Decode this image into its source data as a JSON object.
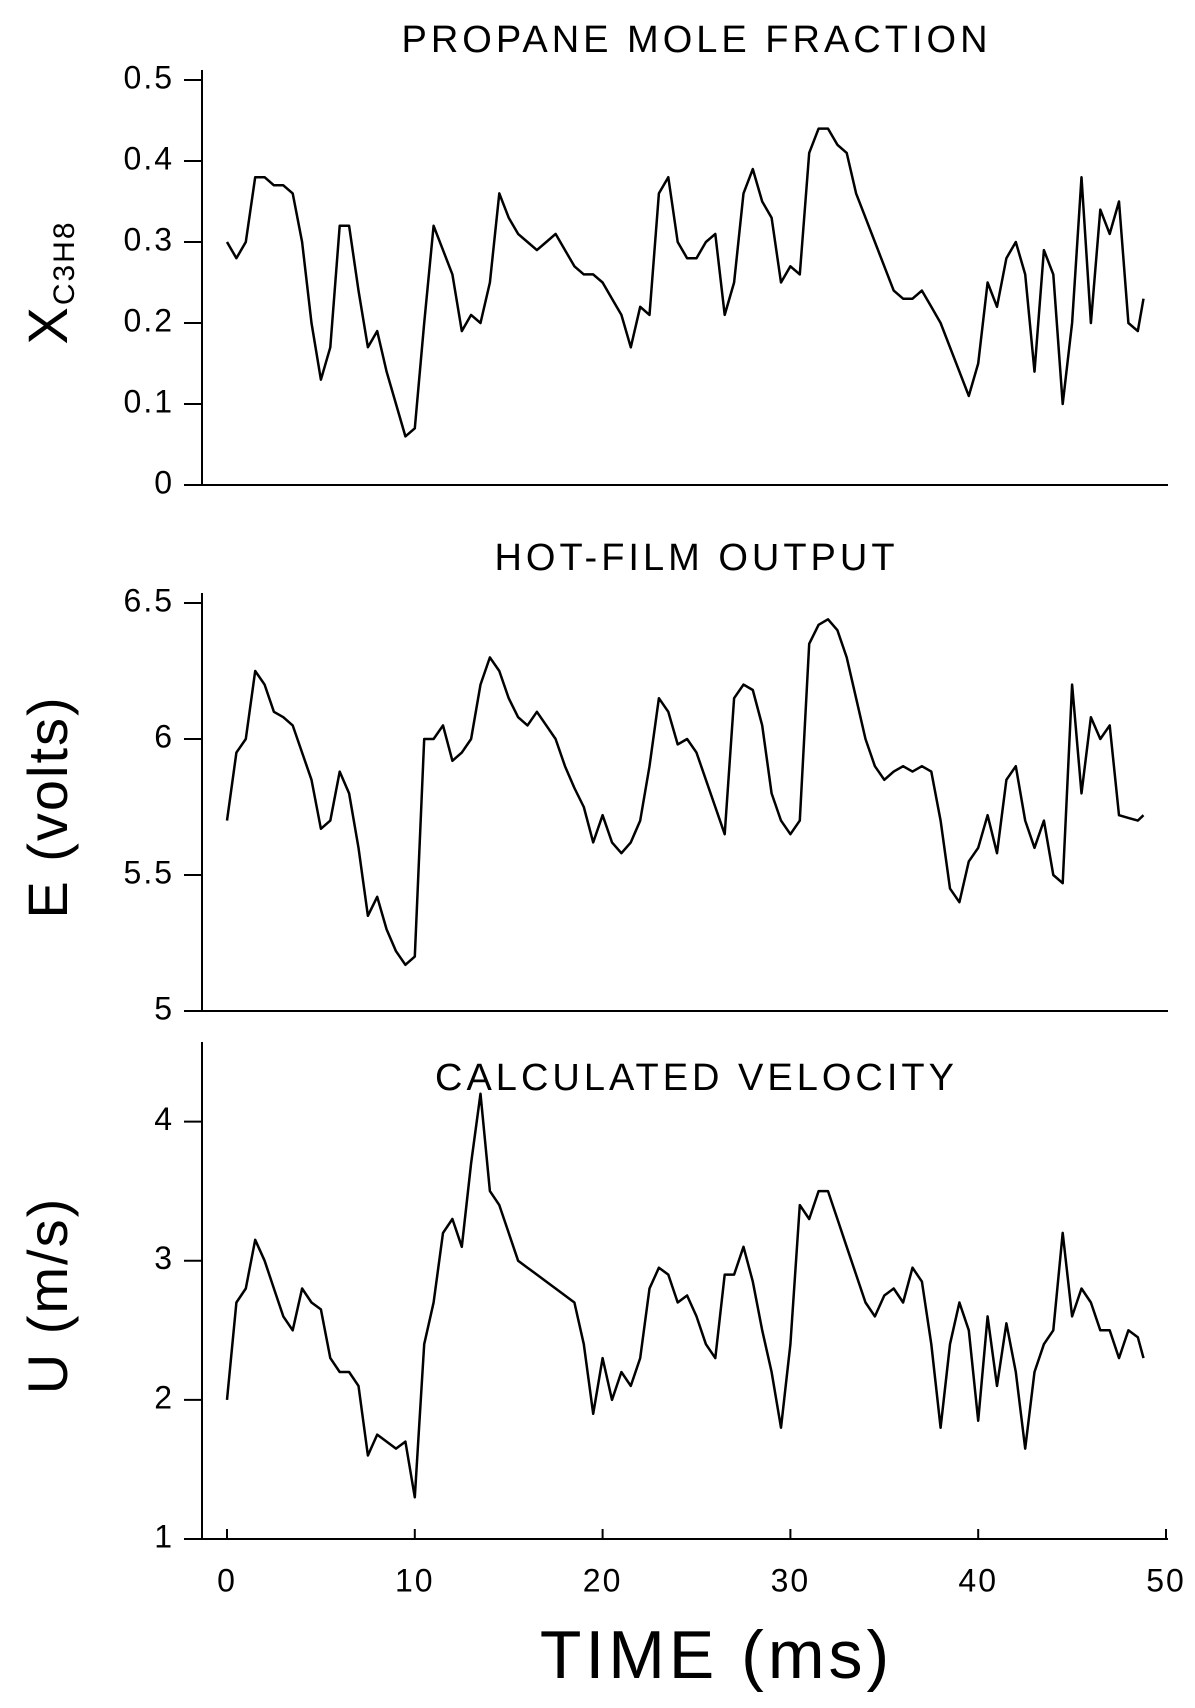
{
  "chart_data": [
    {
      "type": "line",
      "title": "PROPANE MOLE FRACTION",
      "ylabel": "X",
      "ylabel_subscript": "C3H8",
      "color": "#000000",
      "xlim": [
        0,
        50
      ],
      "ylim": [
        0,
        0.5
      ],
      "yticks": [
        0,
        0.1,
        0.2,
        0.3,
        0.4,
        0.5
      ],
      "x": [
        0,
        0.5,
        1,
        1.5,
        2,
        2.5,
        3,
        3.5,
        4,
        4.5,
        5,
        5.5,
        6,
        6.5,
        7,
        7.5,
        8,
        8.5,
        9,
        9.5,
        10,
        10.5,
        11,
        11.5,
        12,
        12.5,
        13,
        13.5,
        14,
        14.5,
        15,
        15.5,
        16,
        16.5,
        17,
        17.5,
        18,
        18.5,
        19,
        19.5,
        20,
        20.5,
        21,
        21.5,
        22,
        22.5,
        23,
        23.5,
        24,
        24.5,
        25,
        25.5,
        26,
        26.5,
        27,
        27.5,
        28,
        28.5,
        29,
        29.5,
        30,
        30.5,
        31,
        31.5,
        32,
        32.5,
        33,
        33.5,
        34,
        34.5,
        35,
        35.5,
        36,
        36.5,
        37,
        37.5,
        38,
        38.5,
        39,
        39.5,
        40,
        40.5,
        41,
        41.5,
        42,
        42.5,
        43,
        43.5,
        44,
        44.5,
        45,
        45.5,
        46,
        46.5,
        47,
        47.5,
        48,
        48.5,
        48.8
      ],
      "values": [
        0.3,
        0.28,
        0.3,
        0.38,
        0.38,
        0.37,
        0.37,
        0.36,
        0.3,
        0.2,
        0.13,
        0.17,
        0.32,
        0.32,
        0.24,
        0.17,
        0.19,
        0.14,
        0.1,
        0.06,
        0.07,
        0.2,
        0.32,
        0.29,
        0.26,
        0.19,
        0.21,
        0.2,
        0.25,
        0.36,
        0.33,
        0.31,
        0.3,
        0.29,
        0.3,
        0.31,
        0.29,
        0.27,
        0.26,
        0.26,
        0.25,
        0.23,
        0.21,
        0.17,
        0.22,
        0.21,
        0.36,
        0.38,
        0.3,
        0.28,
        0.28,
        0.3,
        0.31,
        0.21,
        0.25,
        0.36,
        0.39,
        0.35,
        0.33,
        0.25,
        0.27,
        0.26,
        0.41,
        0.44,
        0.44,
        0.42,
        0.41,
        0.36,
        0.33,
        0.3,
        0.27,
        0.24,
        0.23,
        0.23,
        0.24,
        0.22,
        0.2,
        0.17,
        0.14,
        0.11,
        0.15,
        0.25,
        0.22,
        0.28,
        0.3,
        0.26,
        0.14,
        0.29,
        0.26,
        0.1,
        0.2,
        0.38,
        0.2,
        0.34,
        0.31,
        0.35,
        0.2,
        0.19,
        0.23
      ]
    },
    {
      "type": "line",
      "title": "HOT-FILM OUTPUT",
      "ylabel": "E (volts)",
      "color": "#000000",
      "xlim": [
        0,
        50
      ],
      "ylim": [
        5,
        6.5
      ],
      "yticks": [
        5,
        5.5,
        6,
        6.5
      ],
      "x": [
        0,
        0.5,
        1,
        1.5,
        2,
        2.5,
        3,
        3.5,
        4,
        4.5,
        5,
        5.5,
        6,
        6.5,
        7,
        7.5,
        8,
        8.5,
        9,
        9.5,
        10,
        10.5,
        11,
        11.5,
        12,
        12.5,
        13,
        13.5,
        14,
        14.5,
        15,
        15.5,
        16,
        16.5,
        17,
        17.5,
        18,
        18.5,
        19,
        19.5,
        20,
        20.5,
        21,
        21.5,
        22,
        22.5,
        23,
        23.5,
        24,
        24.5,
        25,
        25.5,
        26,
        26.5,
        27,
        27.5,
        28,
        28.5,
        29,
        29.5,
        30,
        30.5,
        31,
        31.5,
        32,
        32.5,
        33,
        33.5,
        34,
        34.5,
        35,
        35.5,
        36,
        36.5,
        37,
        37.5,
        38,
        38.5,
        39,
        39.5,
        40,
        40.5,
        41,
        41.5,
        42,
        42.5,
        43,
        43.5,
        44,
        44.5,
        45,
        45.5,
        46,
        46.5,
        47,
        47.5,
        48,
        48.5,
        48.8
      ],
      "values": [
        5.7,
        5.95,
        6.0,
        6.25,
        6.2,
        6.1,
        6.08,
        6.05,
        5.95,
        5.85,
        5.67,
        5.7,
        5.88,
        5.8,
        5.6,
        5.35,
        5.42,
        5.3,
        5.22,
        5.17,
        5.2,
        6.0,
        6.0,
        6.05,
        5.92,
        5.95,
        6.0,
        6.2,
        6.3,
        6.25,
        6.15,
        6.08,
        6.05,
        6.1,
        6.05,
        6.0,
        5.9,
        5.82,
        5.75,
        5.62,
        5.72,
        5.62,
        5.58,
        5.62,
        5.7,
        5.9,
        6.15,
        6.1,
        5.98,
        6.0,
        5.95,
        5.85,
        5.75,
        5.65,
        6.15,
        6.2,
        6.18,
        6.05,
        5.8,
        5.7,
        5.65,
        5.7,
        6.35,
        6.42,
        6.44,
        6.4,
        6.3,
        6.15,
        6.0,
        5.9,
        5.85,
        5.88,
        5.9,
        5.88,
        5.9,
        5.88,
        5.7,
        5.45,
        5.4,
        5.55,
        5.6,
        5.72,
        5.58,
        5.85,
        5.9,
        5.7,
        5.6,
        5.7,
        5.5,
        5.47,
        6.2,
        5.8,
        6.08,
        6.0,
        6.05,
        5.72,
        5.71,
        5.7,
        5.72
      ]
    },
    {
      "type": "line",
      "title": "CALCULATED VELOCITY",
      "ylabel": "U (m/s)",
      "xlabel": "TIME (ms)",
      "color": "#000000",
      "xlim": [
        0,
        50
      ],
      "xticks": [
        0,
        10,
        20,
        30,
        40,
        50
      ],
      "ylim": [
        1,
        4.5
      ],
      "yticks": [
        1,
        2,
        3,
        4
      ],
      "x": [
        0,
        0.5,
        1,
        1.5,
        2,
        2.5,
        3,
        3.5,
        4,
        4.5,
        5,
        5.5,
        6,
        6.5,
        7,
        7.5,
        8,
        8.5,
        9,
        9.5,
        10,
        10.5,
        11,
        11.5,
        12,
        12.5,
        13,
        13.5,
        14,
        14.5,
        15,
        15.5,
        16,
        16.5,
        17,
        17.5,
        18,
        18.5,
        19,
        19.5,
        20,
        20.5,
        21,
        21.5,
        22,
        22.5,
        23,
        23.5,
        24,
        24.5,
        25,
        25.5,
        26,
        26.5,
        27,
        27.5,
        28,
        28.5,
        29,
        29.5,
        30,
        30.5,
        31,
        31.5,
        32,
        32.5,
        33,
        33.5,
        34,
        34.5,
        35,
        35.5,
        36,
        36.5,
        37,
        37.5,
        38,
        38.5,
        39,
        39.5,
        40,
        40.5,
        41,
        41.5,
        42,
        42.5,
        43,
        43.5,
        44,
        44.5,
        45,
        45.5,
        46,
        46.5,
        47,
        47.5,
        48,
        48.5,
        48.8
      ],
      "values": [
        2.0,
        2.7,
        2.8,
        3.15,
        3.0,
        2.8,
        2.6,
        2.5,
        2.8,
        2.7,
        2.65,
        2.3,
        2.2,
        2.2,
        2.1,
        1.6,
        1.75,
        1.7,
        1.65,
        1.7,
        1.3,
        2.4,
        2.7,
        3.2,
        3.3,
        3.1,
        3.7,
        4.2,
        3.5,
        3.4,
        3.2,
        3.0,
        2.95,
        2.9,
        2.85,
        2.8,
        2.75,
        2.7,
        2.4,
        1.9,
        2.3,
        2.0,
        2.2,
        2.1,
        2.3,
        2.8,
        2.95,
        2.9,
        2.7,
        2.75,
        2.6,
        2.4,
        2.3,
        2.9,
        2.9,
        3.1,
        2.85,
        2.5,
        2.2,
        1.8,
        2.4,
        3.4,
        3.3,
        3.5,
        3.5,
        3.3,
        3.1,
        2.9,
        2.7,
        2.6,
        2.75,
        2.8,
        2.7,
        2.95,
        2.85,
        2.4,
        1.8,
        2.4,
        2.7,
        2.5,
        1.85,
        2.6,
        2.1,
        2.55,
        2.2,
        1.65,
        2.2,
        2.4,
        2.5,
        3.2,
        2.6,
        2.8,
        2.7,
        2.5,
        2.5,
        2.3,
        2.5,
        2.45,
        2.3
      ]
    }
  ]
}
